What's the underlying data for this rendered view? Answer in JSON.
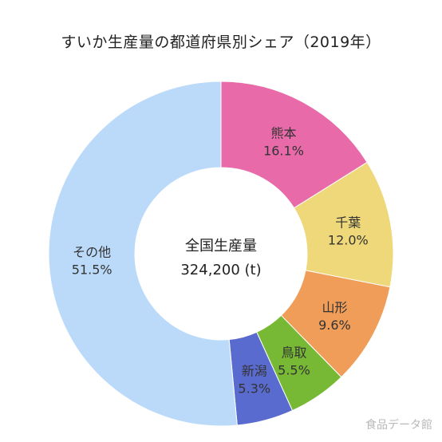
{
  "title": "すいか生産量の都道府県別シェア（2019年）",
  "center": {
    "line1": "全国生産量",
    "line2": "324,200 (t)"
  },
  "watermark": "食品データ館",
  "chart_data": {
    "type": "pie",
    "title": "すいか生産量の都道府県別シェア（2019年）",
    "center_label": "全国生産量",
    "center_value": "324,200 (t)",
    "slices": [
      {
        "name": "熊本",
        "label": "16.1%",
        "value": 16.1,
        "color": "#e86aa8"
      },
      {
        "name": "千葉",
        "label": "12.0%",
        "value": 12.0,
        "color": "#efd87a"
      },
      {
        "name": "山形",
        "label": "9.6%",
        "value": 9.6,
        "color": "#ef9d58"
      },
      {
        "name": "鳥取",
        "label": "5.5%",
        "value": 5.5,
        "color": "#77b935"
      },
      {
        "name": "新潟",
        "label": "5.3%",
        "value": 5.3,
        "color": "#5a6bcf"
      },
      {
        "name": "その他",
        "label": "51.5%",
        "value": 51.5,
        "color": "#bbdafa"
      }
    ]
  }
}
